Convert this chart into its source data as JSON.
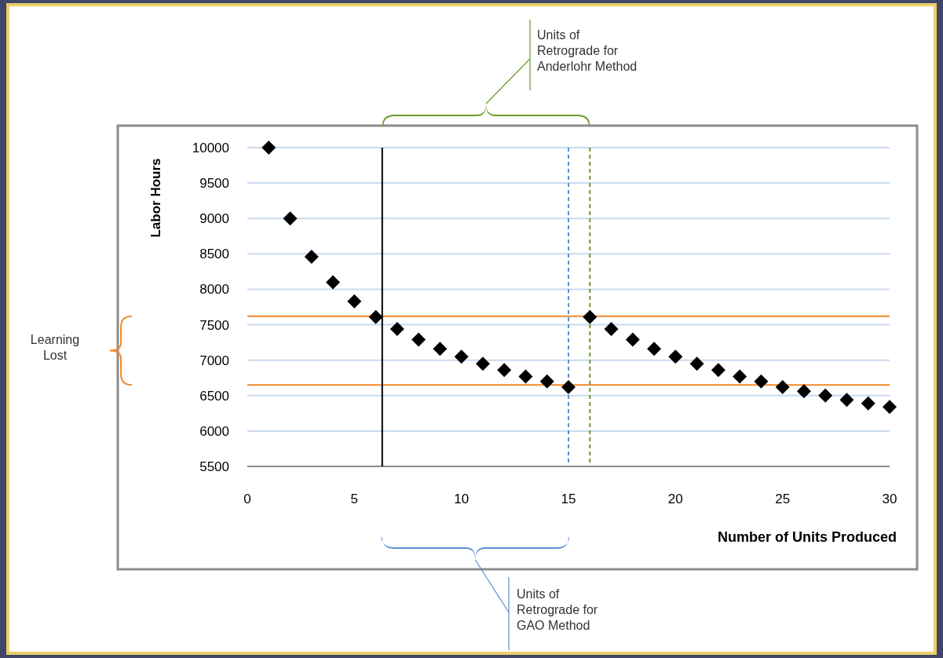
{
  "chart_data": {
    "type": "scatter",
    "xlabel": "Number of Units Produced",
    "ylabel": "Labor Hours",
    "x": [
      1,
      2,
      3,
      4,
      5,
      6,
      7,
      8,
      9,
      10,
      11,
      12,
      13,
      14,
      15,
      16,
      17,
      18,
      19,
      20,
      21,
      22,
      23,
      24,
      25,
      26,
      27,
      28,
      29,
      30
    ],
    "series": [
      {
        "color": "#000000",
        "values": [
          10000,
          9000,
          8460,
          8100,
          7830,
          7610,
          7440,
          7290,
          7160,
          7050,
          6950,
          6860,
          6770,
          6700,
          6620,
          7610,
          7440,
          7290,
          7160,
          7050,
          6950,
          6860,
          6770,
          6700,
          6620,
          6560,
          6500,
          6440,
          6390,
          6340
        ]
      }
    ],
    "marker": "diamond",
    "grid": "y",
    "xlim": [
      0,
      30
    ],
    "xticks": [
      0,
      5,
      10,
      15,
      20,
      25,
      30
    ],
    "ylim": [
      5500,
      10000
    ],
    "yticks": [
      5500,
      6000,
      6500,
      7000,
      7500,
      8000,
      8500,
      9000,
      9500,
      10000
    ],
    "ref_lines": [
      {
        "axis": "y",
        "value": 7620,
        "color": "#f08a2c",
        "line_style": "solid"
      },
      {
        "axis": "y",
        "value": 6650,
        "color": "#f08a2c",
        "line_style": "solid"
      },
      {
        "axis": "x",
        "value": 6.3,
        "color": "#000000",
        "line_style": "solid"
      },
      {
        "axis": "x",
        "value": 15,
        "color": "#5b8fd6",
        "line_style": "dashed"
      },
      {
        "axis": "x",
        "value": 16,
        "color": "#6a9a2e",
        "line_style": "dashed"
      }
    ],
    "annotations": [
      "Units of\nRetrograde for\nAnderlohr Method",
      "Learning\nLost",
      "Units of\nRetrograde for\nGAO Method"
    ]
  }
}
